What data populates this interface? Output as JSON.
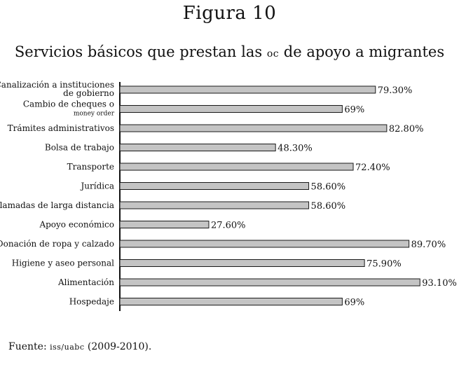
{
  "figure_label": "Figura 10",
  "title_pre": "Servicios básicos que prestan las ",
  "title_sc": "oc",
  "title_post": " de apoyo a migrantes",
  "source_pre": "Fuente: ",
  "source_sc": "iss/uabc",
  "source_post": " (2009-2010).",
  "colors": {
    "bar_fill": "#c4c4c4",
    "bar_stroke": "#1a1a1a",
    "axis": "#111111"
  },
  "chart_data": {
    "type": "bar",
    "orientation": "horizontal",
    "title": "Servicios básicos que prestan las OC de apoyo a migrantes",
    "categories": [
      [
        "Canalización a instituciones",
        "de gobierno"
      ],
      [
        "Cambio de cheques o",
        "money order"
      ],
      [
        "Trámites administrativos"
      ],
      [
        "Bolsa de trabajo"
      ],
      [
        "Transporte"
      ],
      [
        "Jurídica"
      ],
      [
        "Llamadas de larga distancia"
      ],
      [
        "Apoyo económico"
      ],
      [
        "Donación de ropa y calzado"
      ],
      [
        "Higiene y aseo personal"
      ],
      [
        "Alimentación"
      ],
      [
        "Hospedaje"
      ]
    ],
    "values": [
      79.3,
      69,
      82.8,
      48.3,
      72.4,
      58.6,
      58.6,
      27.6,
      89.7,
      75.9,
      93.1,
      69
    ],
    "data_labels": [
      "79.30%",
      "69%",
      "82.80%",
      "48.30%",
      "72.40%",
      "58.60%",
      "58.60%",
      "27.60%",
      "89.70%",
      "75.90%",
      "93.10%",
      "69%"
    ],
    "xlim": [
      0,
      100
    ],
    "grid": false,
    "legend": "none"
  }
}
